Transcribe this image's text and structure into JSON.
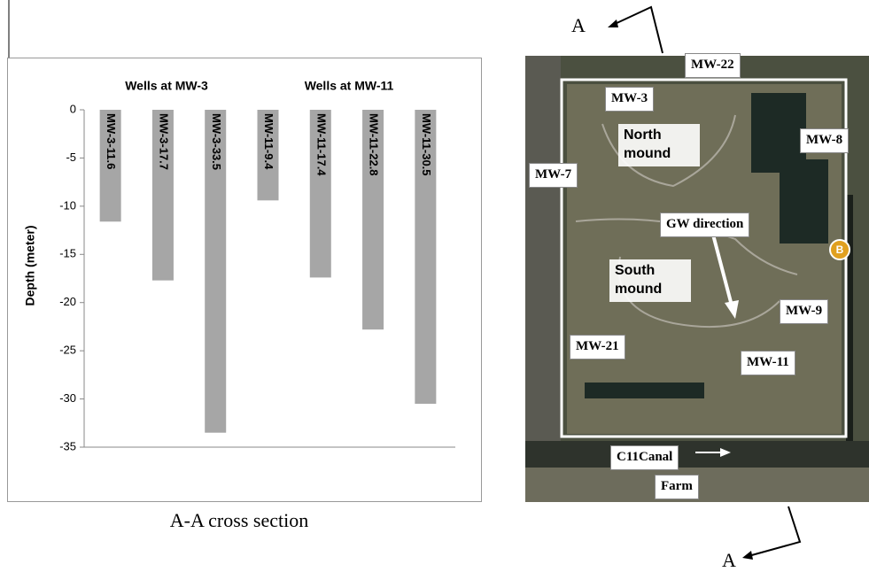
{
  "chart_data": {
    "type": "bar",
    "ylabel": "Depth (meter)",
    "caption": "A-A cross section",
    "groups": [
      "Wells at MW-3",
      "Wells at MW-11"
    ],
    "categories": [
      "MW-3-11.6",
      "MW-3-17.7",
      "MW-3-33.5",
      "MW-11-9.4",
      "MW-11-17.4",
      "MW-11-22.8",
      "MW-11-30.5"
    ],
    "values": [
      -11.6,
      -17.7,
      -33.5,
      -9.4,
      -17.4,
      -22.8,
      -30.5
    ],
    "color": "#a6a6a6",
    "ylim": [
      -35,
      0
    ],
    "yticks": [
      0,
      -5,
      -10,
      -15,
      -20,
      -25,
      -30,
      -35
    ]
  },
  "map": {
    "labels": [
      "MW-22",
      "MW-3",
      "North mound",
      "MW-8",
      "MW-7",
      "GW direction",
      "South mound",
      "MW-9",
      "MW-21",
      "MW-11",
      "C11Canal",
      "Farm"
    ],
    "marker": "B",
    "section_marks": [
      "A",
      "A"
    ]
  }
}
